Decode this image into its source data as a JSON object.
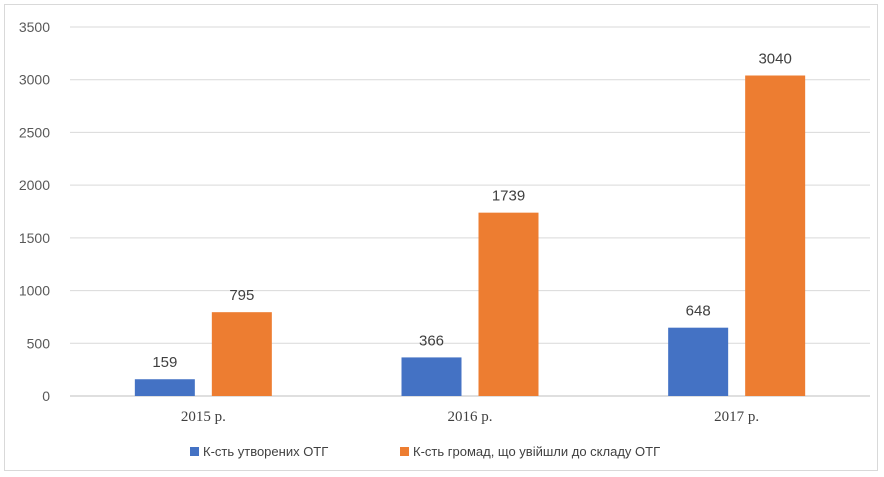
{
  "chart_data": {
    "type": "bar",
    "categories": [
      "2015 р.",
      "2016 р.",
      "2017 р."
    ],
    "series": [
      {
        "name": "К-сть утворених ОТГ",
        "values": [
          159,
          366,
          648
        ],
        "color": "#4472c4"
      },
      {
        "name": "К-сть громад, що увійшли до складу ОТГ",
        "values": [
          795,
          1739,
          3040
        ],
        "color": "#ed7d31"
      }
    ],
    "ylim": [
      0,
      3500
    ],
    "yticks": [
      0,
      500,
      1000,
      1500,
      2000,
      2500,
      3000,
      3500
    ],
    "grid": true,
    "legend": "bottom",
    "data_labels": true
  }
}
